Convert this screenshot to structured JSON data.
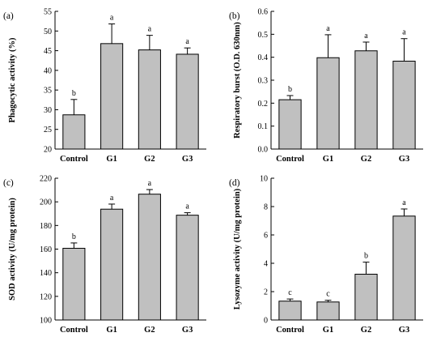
{
  "chart_data": [
    {
      "type": "bar",
      "panel": "(a)",
      "categories": [
        "Control",
        "G1",
        "G2",
        "G3"
      ],
      "values": [
        28.7,
        46.8,
        45.2,
        44.1
      ],
      "errors": [
        3.9,
        5.0,
        3.7,
        1.6
      ],
      "significance": [
        "b",
        "a",
        "a",
        "a"
      ],
      "ylabel": "Phagocytic activity (%)",
      "ylim": [
        20,
        55
      ],
      "yticks": [
        "20",
        "25",
        "30",
        "35",
        "40",
        "45",
        "50",
        "55"
      ],
      "bar_color": "#c0c0c0"
    },
    {
      "type": "bar",
      "panel": "(b)",
      "categories": [
        "Control",
        "G1",
        "G2",
        "G3"
      ],
      "values": [
        0.215,
        0.398,
        0.428,
        0.383
      ],
      "errors": [
        0.018,
        0.1,
        0.038,
        0.098
      ],
      "significance": [
        "b",
        "a",
        "a",
        "a"
      ],
      "ylabel": "Respiratory burst (O.D. 630nm)",
      "ylim": [
        0,
        0.6
      ],
      "yticks": [
        "0.0",
        "0.1",
        "0.2",
        "0.3",
        "0.4",
        "0.5",
        "0.6"
      ],
      "bar_color": "#c0c0c0"
    },
    {
      "type": "bar",
      "panel": "(c)",
      "categories": [
        "Control",
        "G1",
        "G2",
        "G3"
      ],
      "values": [
        160.7,
        193.8,
        206.5,
        188.7
      ],
      "errors": [
        4.5,
        4.3,
        3.9,
        2.1
      ],
      "significance": [
        "b",
        "a",
        "a",
        "a"
      ],
      "ylabel": "SOD activity (U/mg protein)",
      "ylim": [
        100,
        220
      ],
      "yticks": [
        "100",
        "120",
        "140",
        "160",
        "180",
        "200",
        "220"
      ],
      "bar_color": "#c0c0c0"
    },
    {
      "type": "bar",
      "panel": "(d)",
      "categories": [
        "Control",
        "G1",
        "G2",
        "G3"
      ],
      "values": [
        1.33,
        1.27,
        3.23,
        7.33
      ],
      "errors": [
        0.15,
        0.12,
        0.85,
        0.5
      ],
      "significance": [
        "c",
        "c",
        "b",
        "a"
      ],
      "ylabel": "Lysozyme activity (U/mg protein)",
      "ylim": [
        0,
        10
      ],
      "yticks": [
        "0",
        "2",
        "4",
        "6",
        "8",
        "10"
      ],
      "bar_color": "#c0c0c0"
    }
  ]
}
